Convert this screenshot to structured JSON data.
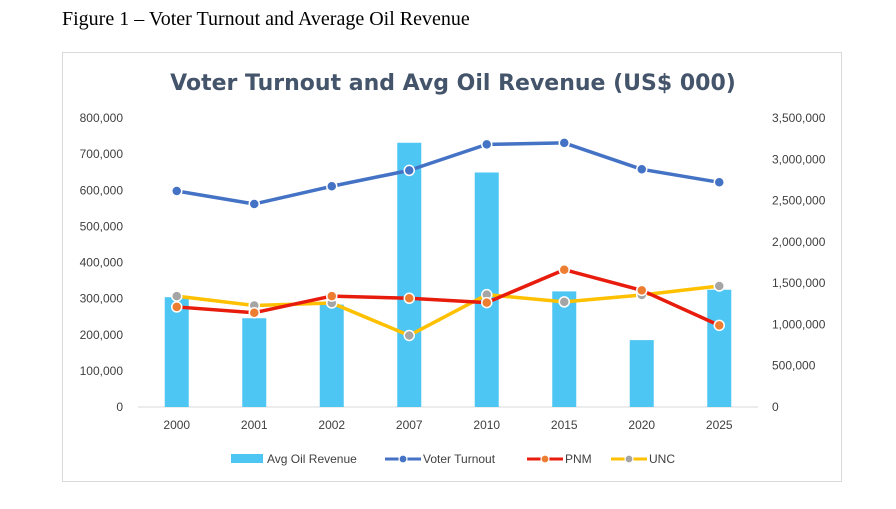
{
  "document": {
    "caption": "Figure 1 – Voter Turnout and Average Oil Revenue"
  },
  "colors": {
    "bar": "#4ec6f3",
    "voter_turnout": "#4472c4",
    "pnm": "#e81c0c",
    "unc": "#ffc000",
    "unc_marker": "#a5a5a5",
    "pnm_marker": "#ed7d31",
    "title": "#44546a"
  },
  "chart_data": {
    "type": "bar",
    "title": "Voter Turnout and Avg Oil Revenue (US$ 000)",
    "categories": [
      "2000",
      "2001",
      "2002",
      "2007",
      "2010",
      "2015",
      "2020",
      "2025"
    ],
    "left_axis": {
      "min": 0,
      "max": 800000,
      "step": 100000,
      "tick_labels": [
        "0",
        "100,000",
        "200,000",
        "300,000",
        "400,000",
        "500,000",
        "600,000",
        "700,000",
        "800,000"
      ]
    },
    "right_axis": {
      "min": 0,
      "max": 3500000,
      "step": 500000,
      "tick_labels": [
        "0",
        "500,000",
        "1,000,000",
        "1,500,000",
        "2,000,000",
        "2,500,000",
        "3,000,000",
        "3,500,000"
      ]
    },
    "series": [
      {
        "name": "Avg Oil Revenue",
        "kind": "bar",
        "axis": "right",
        "values": [
          1330000,
          1075000,
          1240000,
          3200000,
          2840000,
          1400000,
          810000,
          1420000
        ]
      },
      {
        "name": "Voter Turnout",
        "kind": "line",
        "axis": "left",
        "values": [
          598000,
          562000,
          611000,
          655000,
          727000,
          731000,
          658000,
          622000
        ]
      },
      {
        "name": "PNM",
        "kind": "line",
        "axis": "left",
        "values": [
          277000,
          261000,
          307000,
          301000,
          289000,
          380000,
          323000,
          226000
        ]
      },
      {
        "name": "UNC",
        "kind": "line",
        "axis": "left",
        "values": [
          307000,
          281000,
          288000,
          198000,
          311000,
          291000,
          310000,
          335000
        ]
      }
    ],
    "legend_position": "bottom",
    "grid": false
  }
}
